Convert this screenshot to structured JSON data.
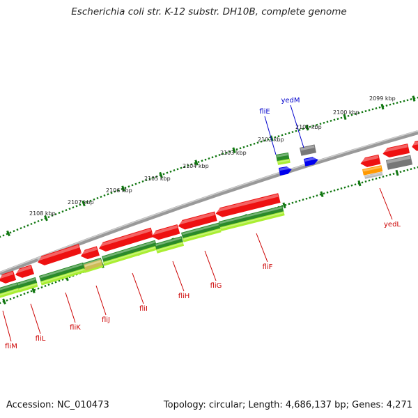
{
  "title": "Escherichia coli str. K-12 substr. DH10B, complete genome",
  "accession": "Accession: NC_010473",
  "stats": "Topology: circular; Length: 4,686,137 bp; Genes: 4,271",
  "tick_labels": [
    "2099 kbp",
    "2100 kbp",
    "2101 kbp",
    "2102 kbp",
    "2103 kbp",
    "2104 kbp",
    "2105 kbp",
    "2106 kbp",
    "2107 kbp",
    "2108 kbp"
  ],
  "gene_labels": [
    {
      "name": "fliE",
      "color": "#0000cc"
    },
    {
      "name": "yedM",
      "color": "#0000cc"
    },
    {
      "name": "yedL",
      "color": "#cc0000"
    },
    {
      "name": "fliF",
      "color": "#cc0000"
    },
    {
      "name": "fliG",
      "color": "#cc0000"
    },
    {
      "name": "fliH",
      "color": "#cc0000"
    },
    {
      "name": "fliI",
      "color": "#cc0000"
    },
    {
      "name": "fliJ",
      "color": "#cc0000"
    },
    {
      "name": "fliK",
      "color": "#cc0000"
    },
    {
      "name": "fliL",
      "color": "#cc0000"
    },
    {
      "name": "fliM",
      "color": "#cc0000"
    }
  ],
  "colors": {
    "cds_red": "#ee1111",
    "cds_blue": "#0000ee",
    "cds_gray": "#777777",
    "cds_orange": "#ff9900",
    "green_dark": "#2a8a2a",
    "green_light": "#aaee33",
    "backbone": "#888888",
    "tick_green": "#117711"
  }
}
